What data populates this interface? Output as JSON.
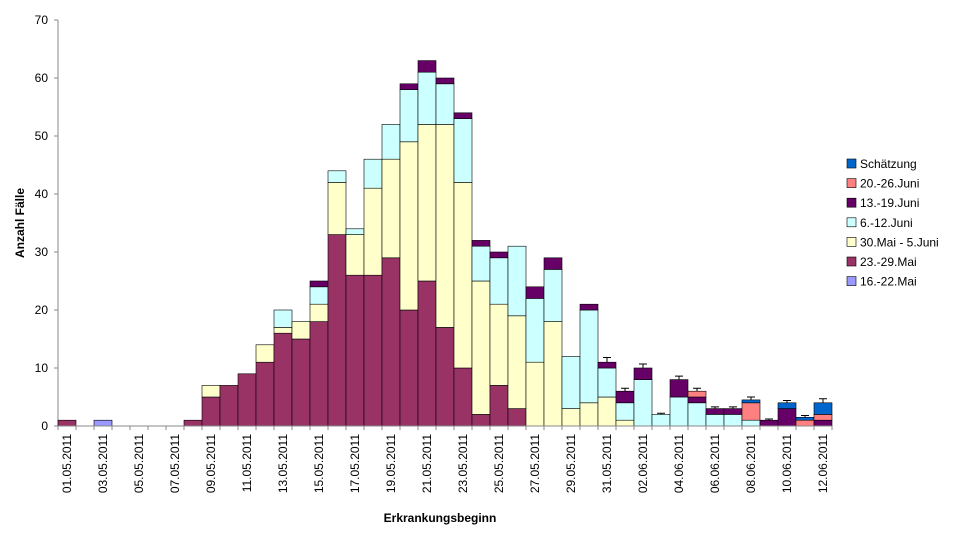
{
  "chart_data": {
    "type": "stacked-bar",
    "x_label": "Erkrankungsbeginn",
    "y_label": "Anzahl Fälle",
    "categories": [
      "01.05.2011",
      null,
      "03.05.2011",
      null,
      "05.05.2011",
      null,
      "07.05.2011",
      null,
      "09.05.2011",
      null,
      "11.05.2011",
      null,
      "13.05.2011",
      null,
      "15.05.2011",
      null,
      "17.05.2011",
      null,
      "19.05.2011",
      null,
      "21.05.2011",
      null,
      "23.05.2011",
      null,
      "25.05.2011",
      null,
      "27.05.2011",
      null,
      "29.05.2011",
      null,
      "31.05.2011",
      null,
      "02.06.2011",
      null,
      "04.06.2011",
      null,
      "06.06.2011",
      null,
      "08.06.2011",
      null,
      "10.06.2011",
      null,
      "12.06.2011"
    ],
    "ylim": [
      0,
      70
    ],
    "yticks": [
      0,
      10,
      20,
      30,
      40,
      50,
      60,
      70
    ],
    "grid": false,
    "series": [
      {
        "name": "16.-22.Mai",
        "color": "#9999ff",
        "values": [
          0,
          0,
          1,
          0,
          0,
          0,
          0,
          0,
          0,
          0,
          0,
          0,
          0,
          0,
          0,
          0,
          0,
          0,
          0,
          0,
          0,
          0,
          0,
          0,
          0,
          0,
          0,
          0,
          0,
          0,
          0,
          0,
          0,
          0,
          0,
          0,
          0,
          0,
          0,
          0,
          0,
          0,
          0
        ]
      },
      {
        "name": "23.-29.Mai",
        "color": "#993366",
        "values": [
          1,
          0,
          0,
          0,
          0,
          0,
          0,
          1,
          5,
          7,
          9,
          11,
          16,
          15,
          18,
          33,
          26,
          26,
          29,
          20,
          25,
          17,
          10,
          2,
          7,
          3,
          0,
          0,
          0,
          0,
          0,
          0,
          0,
          0,
          0,
          0,
          0,
          0,
          0,
          0,
          0,
          0,
          0
        ]
      },
      {
        "name": "30.Mai - 5.Juni",
        "color": "#ffffcc",
        "values": [
          0,
          0,
          0,
          0,
          0,
          0,
          0,
          0,
          2,
          0,
          0,
          3,
          1,
          3,
          3,
          9,
          7,
          15,
          17,
          29,
          27,
          35,
          32,
          23,
          14,
          16,
          11,
          18,
          3,
          4,
          5,
          1,
          0,
          0,
          0,
          0,
          0,
          0,
          0,
          0,
          0,
          0,
          0
        ]
      },
      {
        "name": "6.-12.Juni",
        "color": "#ccffff",
        "values": [
          0,
          0,
          0,
          0,
          0,
          0,
          0,
          0,
          0,
          0,
          0,
          0,
          3,
          0,
          3,
          2,
          1,
          5,
          6,
          9,
          9,
          7,
          11,
          6,
          8,
          12,
          11,
          9,
          9,
          16,
          5,
          3,
          8,
          2,
          5,
          4,
          2,
          2,
          1,
          0,
          0,
          0,
          0
        ]
      },
      {
        "name": "13.-19.Juni",
        "color": "#660066",
        "values": [
          0,
          0,
          0,
          0,
          0,
          0,
          0,
          0,
          0,
          0,
          0,
          0,
          0,
          0,
          1,
          0,
          0,
          0,
          0,
          1,
          2,
          1,
          1,
          1,
          1,
          0,
          2,
          2,
          0,
          1,
          1,
          2,
          2,
          0,
          3,
          1,
          1,
          1,
          0,
          1,
          3,
          0,
          1
        ]
      },
      {
        "name": "20.-26.Juni",
        "color": "#ff8080",
        "values": [
          0,
          0,
          0,
          0,
          0,
          0,
          0,
          0,
          0,
          0,
          0,
          0,
          0,
          0,
          0,
          0,
          0,
          0,
          0,
          0,
          0,
          0,
          0,
          0,
          0,
          0,
          0,
          0,
          0,
          0,
          0,
          0,
          0,
          0,
          0,
          1,
          0,
          0,
          3,
          0,
          0,
          1,
          1
        ]
      },
      {
        "name": "Schätzung",
        "color": "#0066cc",
        "values": [
          0,
          0,
          0,
          0,
          0,
          0,
          0,
          0,
          0,
          0,
          0,
          0,
          0,
          0,
          0,
          0,
          0,
          0,
          0,
          0,
          0,
          0,
          0,
          0,
          0,
          0,
          0,
          0,
          0,
          0,
          0,
          0,
          0,
          0,
          0,
          0,
          0,
          0,
          0.5,
          0,
          1,
          0.5,
          2
        ],
        "errors": [
          null,
          null,
          null,
          null,
          null,
          null,
          null,
          null,
          null,
          null,
          null,
          null,
          null,
          null,
          null,
          null,
          null,
          null,
          null,
          null,
          null,
          null,
          null,
          null,
          null,
          null,
          null,
          null,
          null,
          null,
          0.8,
          0.5,
          0.7,
          0.2,
          0.6,
          0.5,
          0.3,
          0.3,
          0.5,
          0.2,
          0.4,
          0.3,
          0.7
        ]
      }
    ]
  }
}
